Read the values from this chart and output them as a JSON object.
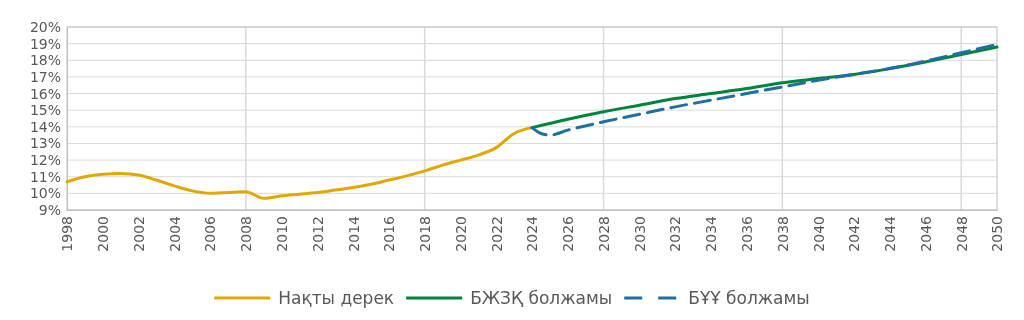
{
  "chart_data": {
    "type": "line",
    "xlim": [
      1998,
      2050
    ],
    "xticks": [
      1998,
      2000,
      2002,
      2004,
      2006,
      2008,
      2010,
      2012,
      2014,
      2016,
      2018,
      2020,
      2022,
      2024,
      2026,
      2028,
      2030,
      2032,
      2034,
      2036,
      2038,
      2040,
      2042,
      2044,
      2046,
      2048,
      2050
    ],
    "ylim": [
      9,
      20
    ],
    "yticks": [
      {
        "value": 9,
        "label": "9%"
      },
      {
        "value": 10,
        "label": "10%"
      },
      {
        "value": 11,
        "label": "11%"
      },
      {
        "value": 12,
        "label": "12%"
      },
      {
        "value": 13,
        "label": "13%"
      },
      {
        "value": 14,
        "label": "14%"
      },
      {
        "value": 15,
        "label": "15%"
      },
      {
        "value": 16,
        "label": "16%"
      },
      {
        "value": 17,
        "label": "17%"
      },
      {
        "value": 18,
        "label": "18%"
      },
      {
        "value": 19,
        "label": "19%"
      },
      {
        "value": 20,
        "label": "20%"
      }
    ],
    "grid": "y",
    "legend": "bottom",
    "ref_lines": [
      {
        "axis": "x",
        "value": 2008,
        "color": "#d9d9d9"
      },
      {
        "axis": "x",
        "value": 2018,
        "color": "#d9d9d9"
      },
      {
        "axis": "x",
        "value": 2028,
        "color": "#d9d9d9"
      },
      {
        "axis": "x",
        "value": 2038,
        "color": "#d9d9d9"
      },
      {
        "axis": "x",
        "value": 2048,
        "color": "#d9d9d9"
      }
    ],
    "series": [
      {
        "name": "Нақты дерек",
        "color": "#e0a800",
        "line_style": "solid",
        "x": [
          1998,
          1999,
          2000,
          2001,
          2002,
          2003,
          2004,
          2005,
          2006,
          2007,
          2008,
          2009,
          2010,
          2011,
          2012,
          2013,
          2014,
          2015,
          2016,
          2017,
          2018,
          2019,
          2020,
          2021,
          2022,
          2023,
          2024
        ],
        "values": [
          10.7,
          11.0,
          11.15,
          11.2,
          11.1,
          10.8,
          10.45,
          10.15,
          10.0,
          10.05,
          10.1,
          9.7,
          9.85,
          9.95,
          10.05,
          10.2,
          10.35,
          10.55,
          10.8,
          11.05,
          11.35,
          11.7,
          12.0,
          12.3,
          12.75,
          13.6,
          13.95
        ]
      },
      {
        "name": "БЖЗҚ болжамы",
        "color": "#00843d",
        "line_style": "solid",
        "x": [
          2024,
          2026,
          2028,
          2030,
          2032,
          2034,
          2036,
          2038,
          2040,
          2042,
          2044,
          2046,
          2048,
          2050
        ],
        "values": [
          13.95,
          14.45,
          14.9,
          15.3,
          15.7,
          16.0,
          16.3,
          16.65,
          16.9,
          17.15,
          17.5,
          17.9,
          18.35,
          18.8
        ]
      },
      {
        "name": "БҰҰ болжамы",
        "color": "#1f6fa0",
        "line_style": "dashed",
        "x": [
          2024,
          2024.5,
          2025,
          2026,
          2028,
          2030,
          2032,
          2034,
          2036,
          2038,
          2040,
          2042,
          2044,
          2046,
          2048,
          2050
        ],
        "values": [
          13.95,
          13.6,
          13.5,
          13.8,
          14.3,
          14.75,
          15.2,
          15.6,
          16.0,
          16.4,
          16.8,
          17.15,
          17.5,
          17.95,
          18.45,
          18.95
        ]
      }
    ]
  }
}
